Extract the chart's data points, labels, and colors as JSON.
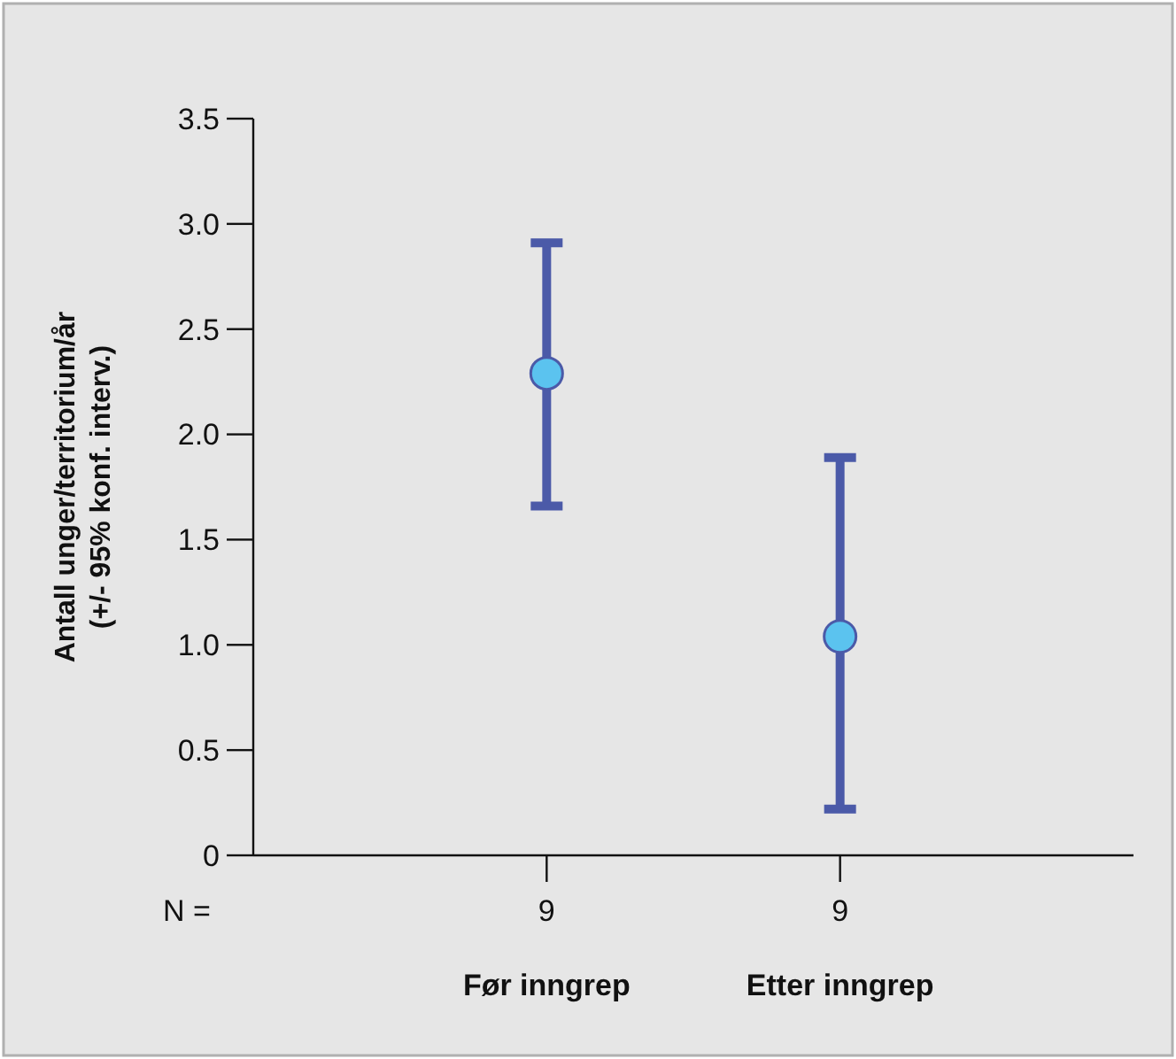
{
  "chart_data": {
    "type": "scatter",
    "ylabel": "Antall unger/territorium/år\n(+/- 95% konf. interv.)",
    "categories": [
      "Før inngrep",
      "Etter inngrep"
    ],
    "series": [
      {
        "color": "#5bc3ef",
        "values": [
          2.29,
          1.04
        ],
        "errors": [
          [
            1.66,
            2.91
          ],
          [
            0.22,
            1.89
          ]
        ]
      }
    ],
    "ylim": [
      0,
      3.5
    ],
    "yticks": [
      0,
      {
        "value": 0.5,
        "label": "0.5"
      },
      {
        "value": 1,
        "label": "1.0"
      },
      {
        "value": 1.5,
        "label": "1.5"
      },
      {
        "value": 2,
        "label": "2.0"
      },
      {
        "value": 2.5,
        "label": "2.5"
      },
      {
        "value": 3,
        "label": "3.0"
      },
      {
        "value": 3.5,
        "label": "3.5"
      }
    ],
    "marker": "circle",
    "annotations": [
      "N =",
      "9",
      "9"
    ]
  }
}
